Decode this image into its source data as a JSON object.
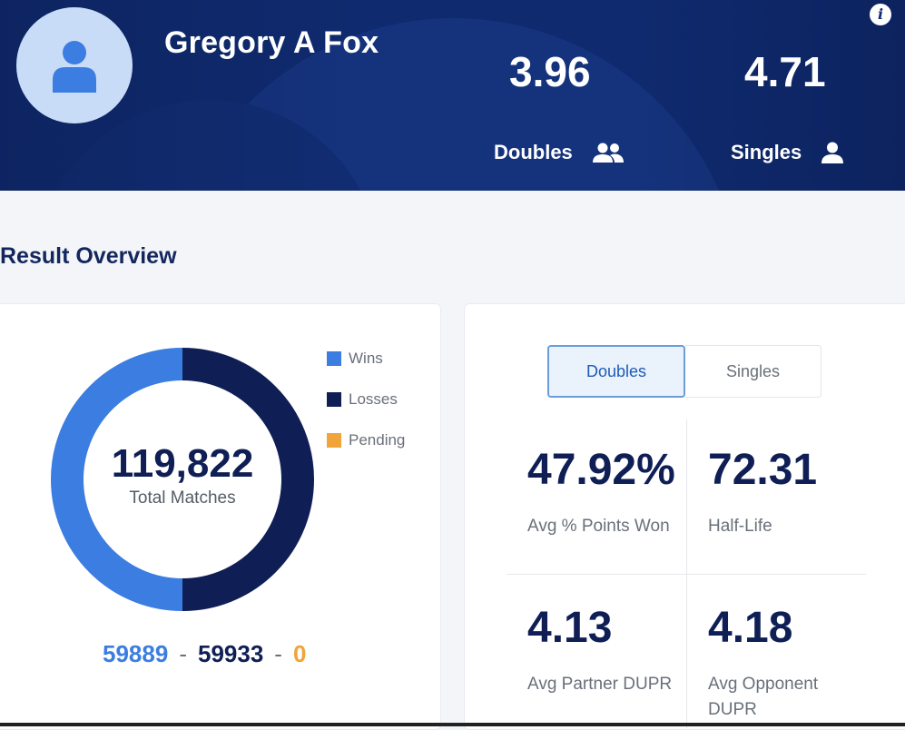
{
  "profile": {
    "name": "Gregory A Fox",
    "doubles_rating": "3.96",
    "doubles_label": "Doubles",
    "singles_rating": "4.71",
    "singles_label": "Singles",
    "info_glyph": "i"
  },
  "results": {
    "title": "Result Overview",
    "total": "119,822",
    "total_label": "Total Matches",
    "legend": [
      {
        "label": "Wins",
        "color": "#3b7de0"
      },
      {
        "label": "Losses",
        "color": "#0f1f55"
      },
      {
        "label": "Pending",
        "color": "#f0a43a"
      }
    ],
    "wins": "59889",
    "losses": "59933",
    "pending": "0",
    "separator": "-"
  },
  "chart_data": {
    "type": "pie",
    "categories": [
      "Wins",
      "Losses",
      "Pending"
    ],
    "values": [
      59889,
      59933,
      0
    ],
    "title": "",
    "center_label": "119,822 Total Matches"
  },
  "stats": {
    "tabs": [
      "Doubles",
      "Singles"
    ],
    "active_tab": "Doubles",
    "items": [
      {
        "value": "47.92%",
        "label": "Avg % Points Won"
      },
      {
        "value": "72.31",
        "label": "Half-Life"
      },
      {
        "value": "4.13",
        "label": "Avg Partner DUPR"
      },
      {
        "value": "4.18",
        "label": "Avg Opponent DUPR"
      }
    ]
  }
}
